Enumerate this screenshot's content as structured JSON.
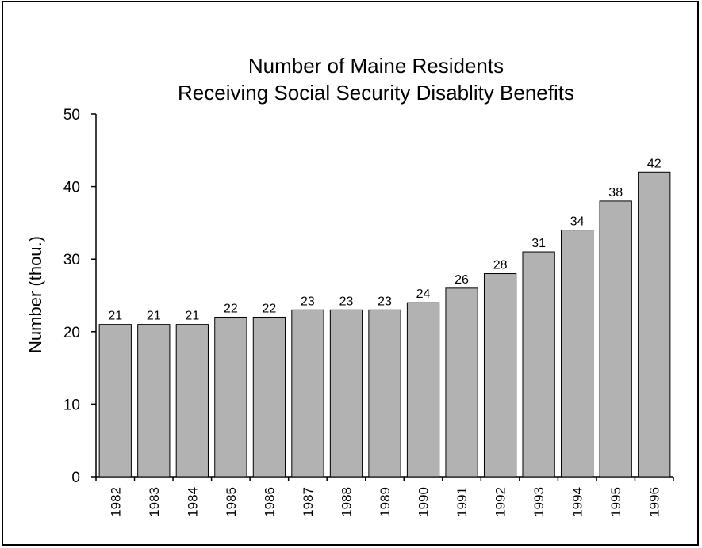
{
  "chart_data": {
    "type": "bar",
    "title": "Number of Maine Residents",
    "subtitle": "Receiving Social Security Disablity Benefits",
    "xlabel": "",
    "ylabel": "Number (thou.)",
    "ylim": [
      0,
      50
    ],
    "yticks": [
      0,
      10,
      20,
      30,
      40,
      50
    ],
    "categories": [
      "1982",
      "1983",
      "1984",
      "1985",
      "1986",
      "1987",
      "1988",
      "1989",
      "1990",
      "1991",
      "1992",
      "1993",
      "1994",
      "1995",
      "1996"
    ],
    "values": [
      21,
      21,
      21,
      22,
      22,
      23,
      23,
      23,
      24,
      26,
      28,
      31,
      34,
      38,
      42
    ],
    "bar_color": "#b2b2b2",
    "bar_stroke": "#000000",
    "grid": false,
    "legend": "none"
  }
}
